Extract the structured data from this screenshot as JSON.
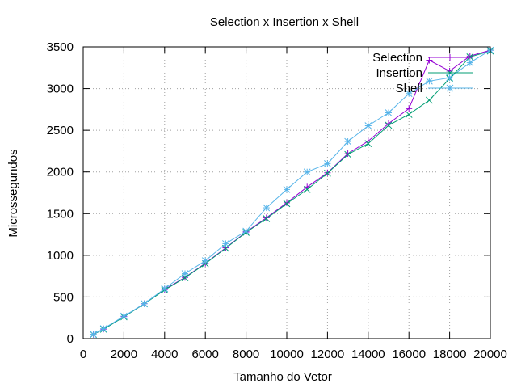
{
  "chart_data": {
    "type": "line",
    "title": "Selection x Insertion x Shell",
    "xlabel": "Tamanho do Vetor",
    "ylabel": "Microssegundos",
    "xlim": [
      0,
      20000
    ],
    "ylim": [
      0,
      3500
    ],
    "x_ticks": [
      0,
      2000,
      4000,
      6000,
      8000,
      10000,
      12000,
      14000,
      16000,
      18000,
      20000
    ],
    "y_ticks": [
      0,
      500,
      1000,
      1500,
      2000,
      2500,
      3000,
      3500
    ],
    "x_tick_labels": [
      "0",
      "2000",
      "4000",
      "6000",
      "8000",
      "10000",
      "12000",
      "14000",
      "16000",
      "18000",
      "20000"
    ],
    "y_tick_labels": [
      "0",
      "500",
      "1000",
      "1500",
      "2000",
      "2500",
      "3000",
      "3500"
    ],
    "grid": true,
    "legend_position": "top-right",
    "series": [
      {
        "name": "Selection",
        "color": "#9400d3",
        "marker": "plus",
        "x": [
          500,
          1000,
          2000,
          3000,
          4000,
          5000,
          6000,
          7000,
          8000,
          9000,
          10000,
          11000,
          12000,
          13000,
          14000,
          15000,
          16000,
          17000,
          18000,
          19000,
          20000
        ],
        "y": [
          50,
          115,
          265,
          420,
          590,
          735,
          905,
          1090,
          1280,
          1450,
          1630,
          1820,
          1990,
          2220,
          2370,
          2580,
          2760,
          3340,
          3210,
          3390,
          3460
        ]
      },
      {
        "name": "Insertion",
        "color": "#009e73",
        "marker": "x",
        "x": [
          500,
          1000,
          2000,
          3000,
          4000,
          5000,
          6000,
          7000,
          8000,
          9000,
          10000,
          11000,
          12000,
          13000,
          14000,
          15000,
          16000,
          17000,
          18000,
          19000,
          20000
        ],
        "y": [
          50,
          112,
          262,
          418,
          585,
          730,
          900,
          1085,
          1275,
          1440,
          1620,
          1790,
          1985,
          2210,
          2340,
          2560,
          2690,
          2860,
          3120,
          3380,
          3450
        ]
      },
      {
        "name": "Shell",
        "color": "#56b4e9",
        "marker": "star",
        "x": [
          500,
          1000,
          2000,
          3000,
          4000,
          5000,
          6000,
          7000,
          8000,
          9000,
          10000,
          11000,
          12000,
          13000,
          14000,
          15000,
          16000,
          17000,
          18000,
          19000,
          20000
        ],
        "y": [
          52,
          120,
          270,
          420,
          600,
          780,
          935,
          1140,
          1290,
          1570,
          1790,
          2000,
          2100,
          2365,
          2555,
          2710,
          2940,
          3090,
          3130,
          3310,
          3460
        ]
      }
    ]
  }
}
